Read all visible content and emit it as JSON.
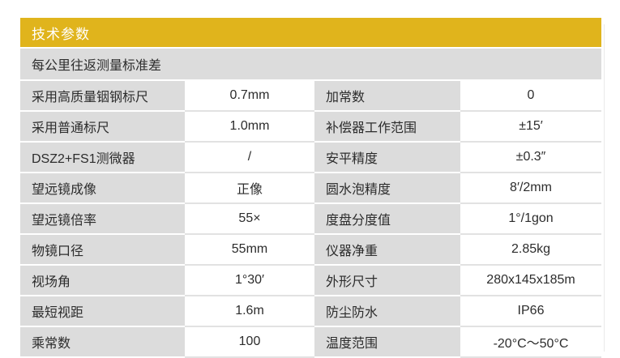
{
  "header": {
    "title": "技术参数"
  },
  "table": {
    "subheader": "每公里往返测量标准差",
    "rows": [
      {
        "l1": "采用高质量铟钢标尺",
        "v1": "0.7mm",
        "l2": "加常数",
        "v2": "0"
      },
      {
        "l1": "采用普通标尺",
        "v1": "1.0mm",
        "l2": "补偿器工作范围",
        "v2": "±15′"
      },
      {
        "l1": "DSZ2+FS1测微器",
        "v1": "/",
        "l2": "安平精度",
        "v2": "±0.3″"
      },
      {
        "l1": "望远镜成像",
        "v1": "正像",
        "l2": "圆水泡精度",
        "v2": "8′/2mm"
      },
      {
        "l1": "望远镜倍率",
        "v1": "55×",
        "l2": "度盘分度值",
        "v2": "1°/1gon"
      },
      {
        "l1": "物镜口径",
        "v1": "55mm",
        "l2": "仪器净重",
        "v2": "2.85kg"
      },
      {
        "l1": "视场角",
        "v1": "1°30′",
        "l2": "外形尺寸",
        "v2": "280x145x185m"
      },
      {
        "l1": "最短视距",
        "v1": "1.6m",
        "l2": "防尘防水",
        "v2": "IP66"
      },
      {
        "l1": "乘常数",
        "v1": "100",
        "l2": "温度范围",
        "v2": "-20°C～50°C"
      }
    ]
  },
  "colors": {
    "accent": "#e0b41c",
    "header_text": "#ffffff",
    "label_bg": "#dcdcdc",
    "value_bg": "#ffffff",
    "text": "#2c2c2c",
    "row_gap": "#ffffff",
    "value_divider": "#e2e2e2",
    "page_bg": "#ffffff"
  }
}
